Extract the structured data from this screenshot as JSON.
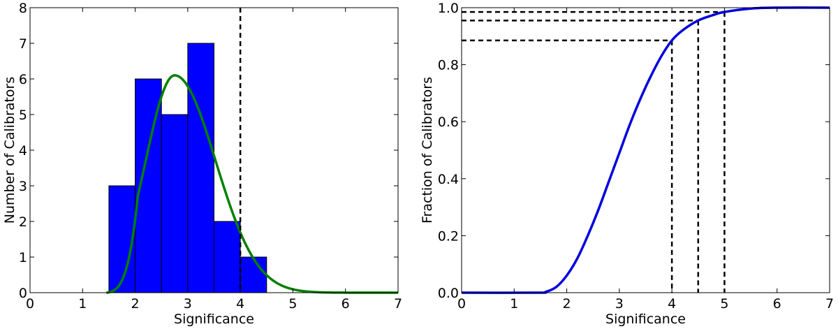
{
  "chart_data": [
    {
      "type": "bar",
      "title": "",
      "xlabel": "Significance",
      "ylabel": "Number of Calibrators",
      "xlim": [
        0,
        7
      ],
      "ylim": [
        0,
        8
      ],
      "xticks": [
        "0",
        "1",
        "2",
        "3",
        "4",
        "5",
        "6",
        "7"
      ],
      "yticks": [
        "0",
        "1",
        "2",
        "3",
        "4",
        "5",
        "6",
        "7",
        "8"
      ],
      "bin_edges": [
        1.5,
        2.0,
        2.5,
        3.0,
        3.5,
        4.0,
        4.5
      ],
      "values": [
        3,
        6,
        5,
        7,
        2,
        1
      ],
      "bar_color": "#0000ff",
      "fit_curve": {
        "color": "#008000",
        "shape": "skewed-gaussian",
        "onset": 1.45,
        "peak_x": 2.75,
        "peak_y": 6.1
      },
      "vlines": [
        4.0
      ],
      "grid": false
    },
    {
      "type": "line",
      "title": "",
      "xlabel": "Significance",
      "ylabel": "Fraction of Calibrators",
      "xlim": [
        0,
        7
      ],
      "ylim": [
        0,
        1.0
      ],
      "xticks": [
        "0",
        "1",
        "2",
        "3",
        "4",
        "5",
        "6",
        "7"
      ],
      "yticks": [
        "0.0",
        "0.2",
        "0.4",
        "0.6",
        "0.8",
        "1.0"
      ],
      "series": [
        {
          "color": "#0000dd",
          "description": "cumulative distribution of the fitted curve",
          "points": [
            [
              0,
              0
            ],
            [
              1.45,
              0
            ],
            [
              1.6,
              0.003
            ],
            [
              1.8,
              0.02
            ],
            [
              2.0,
              0.06
            ],
            [
              2.2,
              0.12
            ],
            [
              2.4,
              0.2
            ],
            [
              2.6,
              0.29
            ],
            [
              2.8,
              0.39
            ],
            [
              3.0,
              0.49
            ],
            [
              3.2,
              0.59
            ],
            [
              3.4,
              0.68
            ],
            [
              3.6,
              0.76
            ],
            [
              3.8,
              0.83
            ],
            [
              4.0,
              0.885
            ],
            [
              4.2,
              0.92
            ],
            [
              4.5,
              0.955
            ],
            [
              4.8,
              0.975
            ],
            [
              5.0,
              0.985
            ],
            [
              5.5,
              0.997
            ],
            [
              6.0,
              1.0
            ],
            [
              7.0,
              1.0
            ]
          ]
        }
      ],
      "reference_points": [
        {
          "x": 4.0,
          "y": 0.885
        },
        {
          "x": 4.5,
          "y": 0.955
        },
        {
          "x": 5.0,
          "y": 0.985
        }
      ],
      "grid": false
    }
  ]
}
